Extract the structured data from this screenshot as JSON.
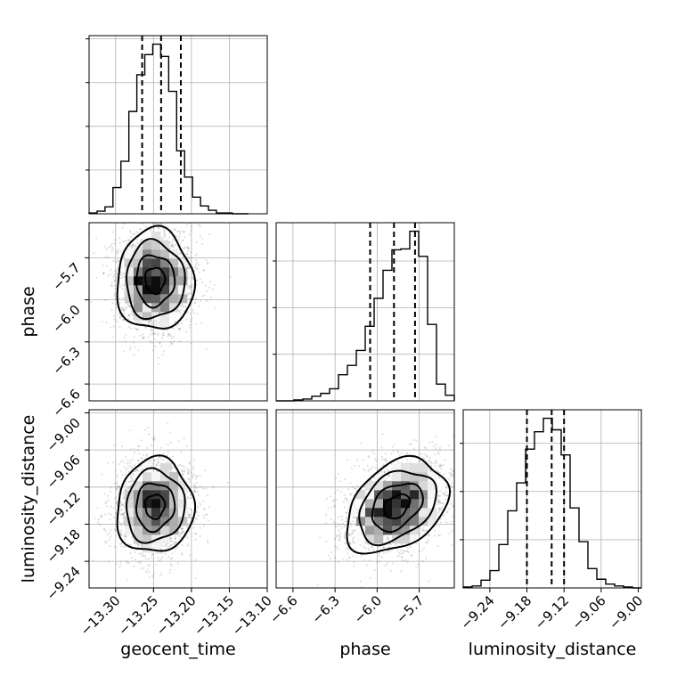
{
  "chart_data": {
    "type": "corner",
    "parameters": [
      "geocent_time",
      "phase",
      "luminosity_distance"
    ],
    "ranges": {
      "geocent_time": [
        -13.335,
        -13.1
      ],
      "phase": [
        -6.72,
        -5.45
      ],
      "luminosity_distance": [
        -9.283,
        -8.995
      ]
    },
    "ticks": {
      "geocent_time": {
        "values": [
          -13.3,
          -13.25,
          -13.2,
          -13.15,
          -13.1
        ],
        "labels": [
          "−13.30",
          "−13.25",
          "−13.20",
          "−13.15",
          "−13.10"
        ]
      },
      "phase": {
        "values": [
          -6.6,
          -6.3,
          -6.0,
          -5.7
        ],
        "labels": [
          "−6.6",
          "−6.3",
          "−6.0",
          "−5.7"
        ]
      },
      "luminosity_distance": {
        "values": [
          -9.24,
          -9.18,
          -9.12,
          -9.06,
          -9.0
        ],
        "labels": [
          "−9.24",
          "−9.18",
          "−9.12",
          "−9.06",
          "−9.00"
        ]
      }
    },
    "quantiles": {
      "geocent_time": [
        -13.265,
        -13.24,
        -13.214
      ],
      "phase": [
        -6.05,
        -5.88,
        -5.73
      ],
      "luminosity_distance": [
        -9.18,
        -9.14,
        -9.12
      ]
    },
    "histograms": {
      "geocent_time": {
        "edges": [
          -13.335,
          -13.3245,
          -13.314,
          -13.3035,
          -13.293,
          -13.2825,
          -13.272,
          -13.2615,
          -13.251,
          -13.2405,
          -13.23,
          -13.2195,
          -13.209,
          -13.1985,
          -13.188,
          -13.1775,
          -13.167,
          -13.1565,
          -13.146,
          -13.1355,
          -13.125
        ],
        "counts": [
          1,
          3,
          8,
          30,
          60,
          117,
          159,
          182,
          194,
          180,
          140,
          72,
          42,
          19,
          9,
          4,
          1,
          1,
          0,
          0
        ]
      },
      "phase": {
        "edges": [
          -6.72,
          -6.6565,
          -6.593,
          -6.5295,
          -6.466,
          -6.4025,
          -6.339,
          -6.2755,
          -6.212,
          -6.1485,
          -6.085,
          -6.0215,
          -5.958,
          -5.8945,
          -5.831,
          -5.7675,
          -5.704,
          -5.6405,
          -5.577,
          -5.5135,
          -5.45
        ],
        "counts": [
          0,
          0,
          1,
          2,
          5,
          8,
          13,
          28,
          38,
          54,
          80,
          110,
          140,
          162,
          163,
          182,
          155,
          82,
          18,
          6
        ]
      },
      "luminosity_distance": {
        "edges": [
          -9.283,
          -9.2686,
          -9.2542,
          -9.2398,
          -9.2254,
          -9.211,
          -9.1966,
          -9.1822,
          -9.1678,
          -9.1534,
          -9.139,
          -9.1246,
          -9.1102,
          -9.0958,
          -9.0814,
          -9.067,
          -9.0526,
          -9.0382,
          -9.0238,
          -9.0094,
          -8.995
        ],
        "counts": [
          1,
          2,
          8,
          18,
          45,
          80,
          109,
          144,
          162,
          176,
          164,
          138,
          83,
          48,
          20,
          9,
          4,
          2,
          1,
          0
        ]
      }
    },
    "contour_levels": [
      0.12,
      0.39,
      0.68,
      0.86
    ]
  }
}
